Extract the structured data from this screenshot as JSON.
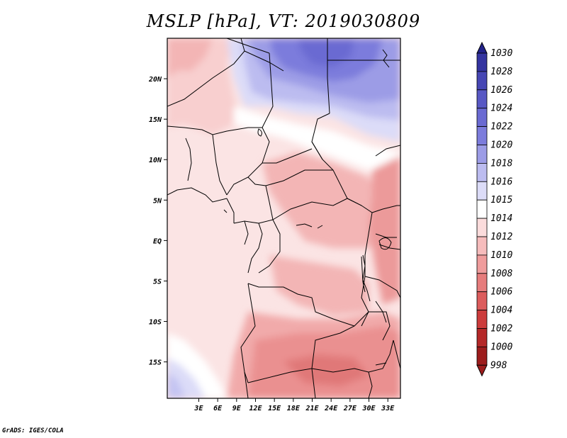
{
  "title": "MSLP [hPa], VT: 2019030809",
  "credit": "GrADS: IGES/COLA",
  "map": {
    "variable": "MSLP",
    "units": "hPa",
    "valid_time": "2019030809",
    "lon_range": [
      -2,
      35
    ],
    "lat_range": [
      -19.5,
      25
    ],
    "background_value_ocean": 1012,
    "y_ticks": [
      {
        "lat": 20,
        "label": "20N"
      },
      {
        "lat": 15,
        "label": "15N"
      },
      {
        "lat": 10,
        "label": "10N"
      },
      {
        "lat": 5,
        "label": "5N"
      },
      {
        "lat": 0,
        "label": "EQ"
      },
      {
        "lat": -5,
        "label": "5S"
      },
      {
        "lat": -10,
        "label": "10S"
      },
      {
        "lat": -15,
        "label": "15S"
      }
    ],
    "x_ticks": [
      {
        "lon": 3,
        "label": "3E"
      },
      {
        "lon": 6,
        "label": "6E"
      },
      {
        "lon": 9,
        "label": "9E"
      },
      {
        "lon": 12,
        "label": "12E"
      },
      {
        "lon": 15,
        "label": "15E"
      },
      {
        "lon": 18,
        "label": "18E"
      },
      {
        "lon": 21,
        "label": "21E"
      },
      {
        "lon": 24,
        "label": "24E"
      },
      {
        "lon": 27,
        "label": "27E"
      },
      {
        "lon": 30,
        "label": "30E"
      },
      {
        "lon": 33,
        "label": "33E"
      }
    ]
  },
  "colorbar": {
    "labels": [
      "1030",
      "1028",
      "1026",
      "1024",
      "1022",
      "1020",
      "1018",
      "1016",
      "1015",
      "1014",
      "1012",
      "1010",
      "1008",
      "1006",
      "1004",
      "1002",
      "1000",
      "998"
    ],
    "colors": [
      "#22228a",
      "#3434a0",
      "#4646b4",
      "#5858c4",
      "#6a6ad2",
      "#7c7cdc",
      "#9c9ce6",
      "#bcbcf0",
      "#dcdcf8",
      "#ffffff",
      "#fbdcdc",
      "#f6bcbc",
      "#ef9c9c",
      "#e67c7c",
      "#dc5c5c",
      "#cc3c3c",
      "#b42828",
      "#9c1c1c"
    ],
    "top_triangle_color": "#22228a",
    "bottom_triangle_color": "#9c1c1c"
  }
}
